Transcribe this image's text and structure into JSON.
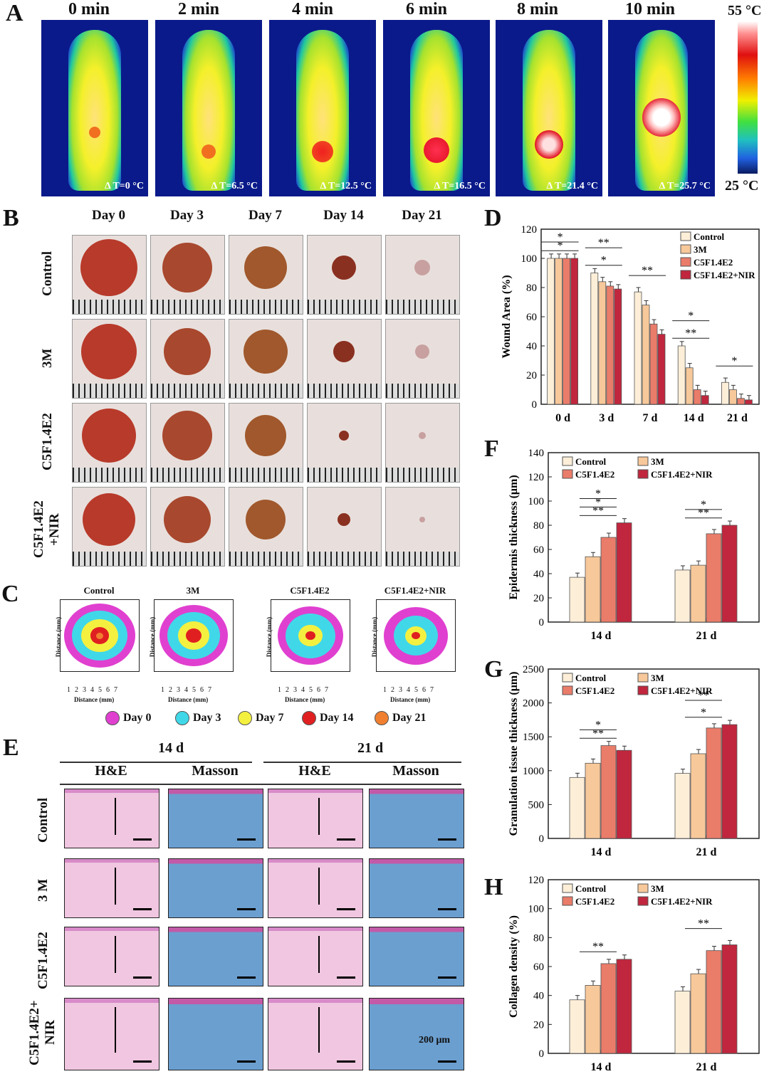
{
  "panels": {
    "A": "A",
    "B": "B",
    "C": "C",
    "D": "D",
    "E": "E",
    "F": "F",
    "G": "G",
    "H": "H"
  },
  "panelA": {
    "times": [
      "0 min",
      "2 min",
      "4 min",
      "6 min",
      "8 min",
      "10 min"
    ],
    "deltas": [
      "Δ T=0 °C",
      "Δ T=6.5 °C",
      "Δ T=12.5 °C",
      "Δ T=16.5 °C",
      "Δ T=21.4 °C",
      "Δ T=25.7 °C"
    ],
    "scale_max": "55 °C",
    "scale_min": "25 °C"
  },
  "panelB": {
    "days": [
      "Day 0",
      "Day 3",
      "Day 7",
      "Day 14",
      "Day 21"
    ],
    "groups": [
      "Control",
      "3M",
      "C5F1.4E2",
      "C5F1.4E2 +NIR"
    ]
  },
  "panelC": {
    "titles": [
      "Control",
      "3M",
      "C5F1.4E2",
      "C5F1.4E2+NIR"
    ],
    "xlabel": "Distance (mm)",
    "ylabel": "Distance (mm)",
    "ticks": [
      "1",
      "2",
      "3",
      "4",
      "5",
      "6",
      "7"
    ],
    "legend": [
      {
        "label": "Day 0",
        "color": "#e040d0"
      },
      {
        "label": "Day 3",
        "color": "#40d8e8"
      },
      {
        "label": "Day 7",
        "color": "#f4f040"
      },
      {
        "label": "Day 14",
        "color": "#e02020"
      },
      {
        "label": "Day 21",
        "color": "#f08030"
      }
    ]
  },
  "panelE": {
    "timepoints": [
      "14 d",
      "21 d"
    ],
    "stains": [
      "H&E",
      "Masson",
      "H&E",
      "Masson"
    ],
    "groups": [
      "Control",
      "3 M",
      "C5F1.4E2",
      "C5F1.4E2+ NIR"
    ],
    "scalebar": "200 μm"
  },
  "colors": {
    "Control": "#fdeed8",
    "3M": "#f7c89a",
    "C5F1.4E2": "#ea7c6a",
    "C5F1.4E2+NIR": "#c0263d"
  },
  "chart_data": [
    {
      "id": "D",
      "type": "bar",
      "ylabel": "Wound Area (%)",
      "ylim": [
        0,
        120
      ],
      "yticks": [
        0,
        20,
        40,
        60,
        80,
        100,
        120
      ],
      "categories": [
        "0 d",
        "3 d",
        "7 d",
        "14 d",
        "21 d"
      ],
      "series": [
        {
          "name": "Control",
          "values": [
            100,
            90,
            77,
            40,
            15
          ]
        },
        {
          "name": "3M",
          "values": [
            100,
            84,
            68,
            25,
            10
          ]
        },
        {
          "name": "C5F1.4E2",
          "values": [
            100,
            81,
            55,
            10,
            4
          ]
        },
        {
          "name": "C5F1.4E2+NIR",
          "values": [
            100,
            79,
            48,
            6,
            3
          ]
        }
      ],
      "annotations": [
        "*",
        "*",
        "**",
        "*",
        "**",
        "*",
        "**",
        "*"
      ]
    },
    {
      "id": "F",
      "type": "bar",
      "ylabel": "Epidermis thickness (μm)",
      "ylim": [
        0,
        140
      ],
      "yticks": [
        0,
        20,
        40,
        60,
        80,
        100,
        120,
        140
      ],
      "categories": [
        "14 d",
        "21 d"
      ],
      "series": [
        {
          "name": "Control",
          "values": [
            37,
            43
          ]
        },
        {
          "name": "3M",
          "values": [
            54,
            47
          ]
        },
        {
          "name": "C5F1.4E2",
          "values": [
            70,
            73
          ]
        },
        {
          "name": "C5F1.4E2+NIR",
          "values": [
            82,
            80
          ]
        }
      ],
      "annotations": [
        "**",
        "*",
        "*",
        "**",
        "*"
      ]
    },
    {
      "id": "G",
      "type": "bar",
      "ylabel": "Granulation tissue thickness (μm)",
      "ylim": [
        0,
        2500
      ],
      "yticks": [
        0,
        500,
        1000,
        1500,
        2000,
        2500
      ],
      "categories": [
        "14 d",
        "21 d"
      ],
      "series": [
        {
          "name": "Control",
          "values": [
            900,
            960
          ]
        },
        {
          "name": "3M",
          "values": [
            1110,
            1250
          ]
        },
        {
          "name": "C5F1.4E2",
          "values": [
            1370,
            1630
          ]
        },
        {
          "name": "C5F1.4E2+NIR",
          "values": [
            1300,
            1680
          ]
        }
      ],
      "annotations": [
        "**",
        "*",
        "**",
        "*"
      ]
    },
    {
      "id": "H",
      "type": "bar",
      "ylabel": "Collagen density (%)",
      "ylim": [
        0,
        120
      ],
      "yticks": [
        0,
        20,
        40,
        60,
        80,
        100,
        120
      ],
      "categories": [
        "14 d",
        "21 d"
      ],
      "series": [
        {
          "name": "Control",
          "values": [
            37,
            43
          ]
        },
        {
          "name": "3M",
          "values": [
            47,
            55
          ]
        },
        {
          "name": "C5F1.4E2",
          "values": [
            62,
            71
          ]
        },
        {
          "name": "C5F1.4E2+NIR",
          "values": [
            65,
            75
          ]
        }
      ],
      "annotations": [
        "**",
        "**"
      ]
    }
  ]
}
